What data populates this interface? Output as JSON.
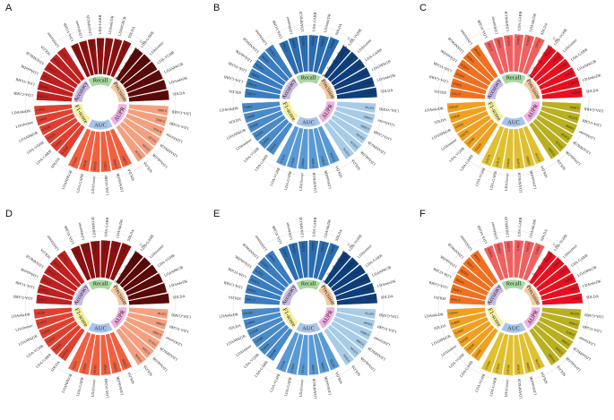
{
  "chart_data": {
    "type": "bar",
    "layout": "circular",
    "grid": false,
    "ylim": [
      0,
      1.0
    ],
    "radial_ticks": [
      "0.0",
      "0.2",
      "0.4",
      "0.6",
      "0.8",
      "1.0"
    ],
    "metrics": [
      {
        "name": "Recall",
        "color": "#a8d8a0"
      },
      {
        "name": "Precision",
        "color": "#f5c9a0"
      },
      {
        "name": "AUPR",
        "color": "#f0b0e0"
      },
      {
        "name": "AUC",
        "color": "#a8c4ea"
      },
      {
        "name": "F1-score",
        "color": "#f5f0a0"
      },
      {
        "name": "Accuracy",
        "color": "#c8b8e0"
      }
    ],
    "panels": [
      {
        "letter": "A",
        "colors": [
          "#8b1010",
          "#5a0808",
          "#f4a080",
          "#f06040",
          "#e04030",
          "#c02020"
        ],
        "metrics": [
          {
            "name": "Recall",
            "labels": [
              "LDA-VGHB",
              "LDAformer",
              "LDANPKGB",
              "LDA-GARB",
              "LDAmkrDK",
              "LDASGRCB",
              "SDLDA"
            ],
            "values": [
              0.7939,
              0.7965,
              0.802,
              0.8155,
              0.8242,
              0.8383,
              0.8615
            ]
          },
          {
            "name": "Precision",
            "labels": [
              "LDA-GARB",
              "LDAformer",
              "LDA-VGHB",
              "LDANPKGB",
              "LDAmkrDK",
              "SDLDA"
            ],
            "values": [
              0.8226,
              0.8306,
              0.838,
              0.8624,
              0.8755,
              0.9014
            ]
          },
          {
            "name": "AUPR",
            "labels": [
              "LDA-GARB",
              "LDA-VGHB",
              "LDAformer",
              "LDANPKGB",
              "LDAmkrDK",
              "SDLDA"
            ],
            "values": [
              0.886,
              0.8895,
              0.905,
              0.912,
              0.918,
              0.923
            ]
          },
          {
            "name": "AUC",
            "labels": [
              "SDLDA",
              "LDAmkrDK",
              "LDA-VGHB",
              "LDAformer",
              "LDA-GARB",
              "LDANPKGB"
            ],
            "values": [
              0.8863,
              0.8933,
              0.9055,
              0.9119,
              0.9146,
              0.9249
            ]
          },
          {
            "name": "F1-score",
            "labels": [
              "SDLDA",
              "LDA-GARB",
              "LDA-VGHB",
              "LDANPKGB",
              "LDAformer",
              "LDAmkrDK"
            ],
            "values": [
              0.814,
              0.8163,
              0.8216,
              0.8308,
              0.841,
              0.8445
            ]
          },
          {
            "name": "Accuracy",
            "labels": [
              "LDA-GARB",
              "LDA-VGHB",
              "LDAmkrDK",
              "LDANPKGB",
              "SDLDA",
              "LDAformer"
            ],
            "values": [
              0.7939,
              0.804,
              0.8146,
              0.8245,
              0.833,
              0.8424
            ]
          }
        ]
      },
      {
        "letter": "B",
        "colors": [
          "#2a6cb0",
          "#0f3f7a",
          "#a8cce8",
          "#5a9ad4",
          "#4a8ac8",
          "#3a7cc0"
        ],
        "metrics": [
          {
            "name": "Recall",
            "labels": [
              "LDA-VGHB",
              "LDAformer",
              "LDANPKGB",
              "LDA-GARB",
              "LDAmkrDK",
              "SDLDA"
            ],
            "values": [
              0.788,
              0.8045,
              0.815,
              0.8226,
              0.8415,
              0.8629
            ]
          },
          {
            "name": "Precision",
            "labels": [
              "LDA-VGHB",
              "LDAformer",
              "LDA-GARB",
              "LDANPKGB",
              "LDAmkrDK",
              "SDLDA"
            ],
            "values": [
              0.8134,
              0.822,
              0.836,
              0.853,
              0.878,
              0.9012
            ]
          },
          {
            "name": "AUPR",
            "labels": [
              "LDA-VGHB",
              "LDAformer",
              "LDA-GARB",
              "LDANPKGB",
              "LDAmkrDK",
              "SDLDA"
            ],
            "values": [
              0.874,
              0.886,
              0.899,
              0.91,
              0.921,
              0.9276
            ]
          },
          {
            "name": "AUC",
            "labels": [
              "SDLDA",
              "LDAmkrDK",
              "LDANPKGB",
              "LDAformer",
              "LDA-GARB",
              "LDA-VGHB"
            ],
            "values": [
              0.8754,
              0.885,
              0.896,
              0.9064,
              0.916,
              0.9245
            ]
          },
          {
            "name": "F1-score",
            "labels": [
              "LDA-GARB",
              "LDA-VGHB",
              "LDAformer",
              "LDANPKGB",
              "SDLDA",
              "LDAmkrDK"
            ],
            "values": [
              0.812,
              0.819,
              0.826,
              0.833,
              0.84,
              0.8485
            ]
          },
          {
            "name": "Accuracy",
            "labels": [
              "SDLDA",
              "LDA-GARB",
              "LDA-VGHB",
              "LDAmkrDK",
              "LDANPKGB",
              "LDAformer"
            ],
            "values": [
              0.7883,
              0.799,
              0.808,
              0.819,
              0.83,
              0.841
            ]
          }
        ]
      },
      {
        "letter": "C",
        "colors": [
          "#f06060",
          "#e81020",
          "#b8b020",
          "#e0c030",
          "#f0a020",
          "#f07020"
        ],
        "metrics": [
          {
            "name": "Recall",
            "labels": [
              "LDA-VGHB",
              "LDAformer",
              "LDANPKGB",
              "LDA-GARB",
              "LDAmkrDK",
              "SDLDA"
            ],
            "values": [
              0.799,
              0.808,
              0.823,
              0.8405,
              0.856,
              0.8724
            ]
          },
          {
            "name": "Precision",
            "labels": [
              "LDA-VGHB",
              "LDAformer",
              "LDA-GARB",
              "LDANPKGB",
              "LDAmkrDK",
              "SDLDA"
            ],
            "values": [
              0.8195,
              0.833,
              0.846,
              0.861,
              0.881,
              0.904
            ]
          },
          {
            "name": "AUPR",
            "labels": [
              "LDA-GARB",
              "LDA-VGHB",
              "LDAformer",
              "LDANPKGB",
              "LDAmkrDK",
              "SDLDA"
            ],
            "values": [
              0.869,
              0.879,
              0.889,
              0.903,
              0.915,
              0.926
            ]
          },
          {
            "name": "AUC",
            "labels": [
              "SDLDA",
              "LDAmkrDK",
              "LDANPKGB",
              "LDAformer",
              "LDA-GARB",
              "LDA-VGHB"
            ],
            "values": [
              0.875,
              0.886,
              0.897,
              0.908,
              0.9171,
              0.9271
            ]
          },
          {
            "name": "F1-score",
            "labels": [
              "LDA-GARB",
              "LDA-VGHB",
              "LDAformer",
              "LDANPKGB",
              "SDLDA",
              "LDAmkrDK"
            ],
            "values": [
              0.81,
              0.818,
              0.827,
              0.835,
              0.843,
              0.8529
            ]
          },
          {
            "name": "Accuracy",
            "labels": [
              "SDLDA",
              "LDA-GARB",
              "LDA-VGHB",
              "LDAmkrDK",
              "LDANPKGB",
              "LDAformer"
            ],
            "values": [
              0.7913,
              0.801,
              0.811,
              0.822,
              0.833,
              0.844
            ]
          }
        ]
      },
      {
        "letter": "D",
        "colors": [
          "#8b1010",
          "#5a0808",
          "#f4a080",
          "#f06040",
          "#e04030",
          "#c02020"
        ],
        "metrics": [
          {
            "name": "Recall",
            "labels": [
              "LDA-VGHB",
              "LDAformer",
              "LDANPKGB",
              "LDA-GARB",
              "LDAmkrDK",
              "SDLDA"
            ],
            "values": [
              0.8003,
              0.812,
              0.825,
              0.839,
              0.8525,
              0.866
            ]
          },
          {
            "name": "Precision",
            "labels": [
              "LDA-GARB",
              "LDAformer",
              "LDA-VGHB",
              "LDANPKGB",
              "LDAmkrDK",
              "SDLDA"
            ],
            "values": [
              0.824,
              0.836,
              0.849,
              0.863,
              0.879,
              0.905
            ]
          },
          {
            "name": "AUPR",
            "labels": [
              "LDA-GARB",
              "LDA-VGHB",
              "LDAformer",
              "LDANPKGB",
              "LDAmkrDK",
              "SDLDA"
            ],
            "values": [
              0.878,
              0.888,
              0.899,
              0.911,
              0.92,
              0.9286
            ]
          },
          {
            "name": "AUC",
            "labels": [
              "SDLDA",
              "LDAmkrDK",
              "LDA-VGHB",
              "LDAformer",
              "LDA-GARB",
              "LDANPKGB"
            ],
            "values": [
              0.8829,
              0.892,
              0.902,
              0.9116,
              0.92,
              0.927
            ]
          },
          {
            "name": "F1-score",
            "labels": [
              "SDLDA",
              "LDA-GARB",
              "LDA-VGHB",
              "LDANPKGB",
              "LDAformer",
              "LDAmkrDK"
            ],
            "values": [
              0.815,
              0.823,
              0.831,
              0.839,
              0.847,
              0.8538
            ]
          },
          {
            "name": "Accuracy",
            "labels": [
              "LDA-GARB",
              "LDA-VGHB",
              "LDAmkrDK",
              "LDANPKGB",
              "SDLDA",
              "LDAformer"
            ],
            "values": [
              0.7995,
              0.809,
              0.818,
              0.828,
              0.837,
              0.8458
            ]
          }
        ]
      },
      {
        "letter": "E",
        "colors": [
          "#2a6cb0",
          "#0f3f7a",
          "#a8cce8",
          "#5a9ad4",
          "#4a8ac8",
          "#3a7cc0"
        ],
        "metrics": [
          {
            "name": "Recall",
            "labels": [
              "LDA-VGHB",
              "LDAformer",
              "LDANPKGB",
              "LDA-GARB",
              "LDAmkrDK",
              "SDLDA"
            ],
            "values": [
              0.8012,
              0.813,
              0.826,
              0.84,
              0.853,
              0.8669
            ]
          },
          {
            "name": "Precision",
            "labels": [
              "LDA-VGHB",
              "LDAformer",
              "LDA-GARB",
              "LDANPKGB",
              "LDAmkrDK",
              "SDLDA"
            ],
            "values": [
              0.823,
              0.835,
              0.848,
              0.862,
              0.88,
              0.906
            ]
          },
          {
            "name": "AUPR",
            "labels": [
              "LDA-GARB",
              "LDA-VGHB",
              "LDAformer",
              "LDANPKGB",
              "LDAmkrDK",
              "SDLDA"
            ],
            "values": [
              0.873,
              0.884,
              0.896,
              0.908,
              0.919,
              0.9291
            ]
          },
          {
            "name": "AUC",
            "labels": [
              "SDLDA",
              "LDAmkrDK",
              "LDANPKGB",
              "LDAformer",
              "LDA-GARB",
              "LDA-VGHB"
            ],
            "values": [
              0.8781,
              0.888,
              0.899,
              0.911,
              0.92,
              0.929
            ]
          },
          {
            "name": "F1-score",
            "labels": [
              "LDA-GARB",
              "LDA-VGHB",
              "LDAformer",
              "LDANPKGB",
              "SDLDA",
              "LDAmkrDK"
            ],
            "values": [
              0.814,
              0.822,
              0.83,
              0.838,
              0.846,
              0.8543
            ]
          },
          {
            "name": "Accuracy",
            "labels": [
              "SDLDA",
              "LDA-GARB",
              "LDA-VGHB",
              "LDAmkrDK",
              "LDANPKGB",
              "LDAformer"
            ],
            "values": [
              0.796,
              0.806,
              0.816,
              0.827,
              0.837,
              0.8467
            ]
          }
        ]
      },
      {
        "letter": "F",
        "colors": [
          "#f06060",
          "#e81020",
          "#b8b020",
          "#e0c030",
          "#f0a020",
          "#f07020"
        ],
        "metrics": [
          {
            "name": "Recall",
            "labels": [
              "LDA-VGHB",
              "LDAformer",
              "LDANPKGB",
              "LDA-GARB",
              "LDAmkrDK",
              "SDLDA"
            ],
            "values": [
              0.8093,
              0.819,
              0.829,
              0.842,
              0.855,
              0.8685
            ]
          },
          {
            "name": "Precision",
            "labels": [
              "LDA-VGHB",
              "LDAformer",
              "LDA-GARB",
              "LDANPKGB",
              "LDAmkrDK",
              "SDLDA"
            ],
            "values": [
              0.826,
              0.838,
              0.851,
              0.865,
              0.882,
              0.908
            ]
          },
          {
            "name": "AUPR",
            "labels": [
              "LDA-GARB",
              "LDA-VGHB",
              "LDAformer",
              "LDANPKGB",
              "LDAmkrDK",
              "SDLDA"
            ],
            "values": [
              0.874,
              0.885,
              0.897,
              0.909,
              0.92,
              0.9309
            ]
          },
          {
            "name": "AUC",
            "labels": [
              "SDLDA",
              "LDAmkrDK",
              "LDANPKGB",
              "LDAformer",
              "LDA-GARB",
              "LDA-VGHB"
            ],
            "values": [
              0.8796,
              0.89,
              0.901,
              0.913,
              0.922,
              0.931
            ]
          },
          {
            "name": "F1-score",
            "labels": [
              "LDA-GARB",
              "LDA-VGHB",
              "LDAformer",
              "LDANPKGB",
              "SDLDA",
              "LDAmkrDK"
            ],
            "values": [
              0.816,
              0.824,
              0.832,
              0.84,
              0.848,
              0.856
            ]
          },
          {
            "name": "Accuracy",
            "labels": [
              "SDLDA",
              "LDA-GARB",
              "LDA-VGHB",
              "LDAmkrDK",
              "LDANPKGB",
              "LDAformer"
            ],
            "values": [
              0.799,
              0.809,
              0.819,
              0.829,
              0.839,
              0.849
            ]
          }
        ]
      }
    ]
  }
}
